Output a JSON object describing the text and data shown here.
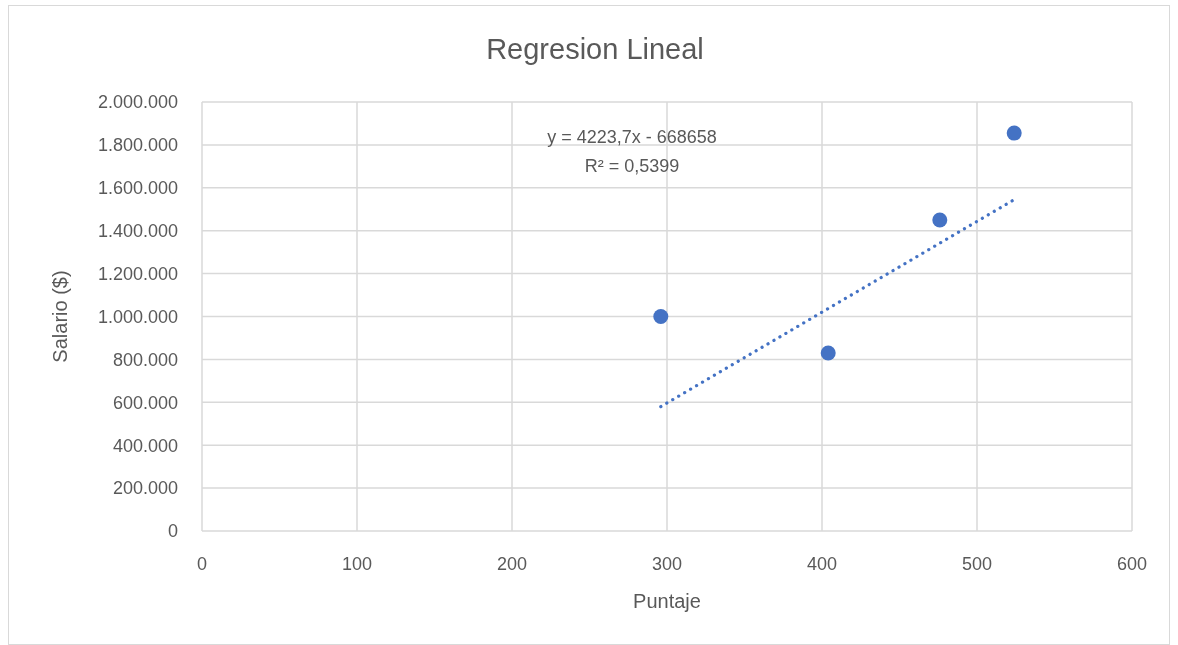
{
  "chart_data": {
    "type": "scatter",
    "title": "Regresion Lineal",
    "xlabel": "Puntaje",
    "ylabel": "Salario ($)",
    "annotations": [
      "y = 4223,7x - 668658",
      "R² = 0,5399"
    ],
    "xlim": [
      0,
      600
    ],
    "xticks": [
      0,
      100,
      200,
      300,
      400,
      500,
      600
    ],
    "ylim": [
      0,
      2000000
    ],
    "yticks": [
      0,
      {
        "value": 200000,
        "label": "200.000"
      },
      {
        "value": 400000,
        "label": "400.000"
      },
      {
        "value": 600000,
        "label": "600.000"
      },
      {
        "value": 800000,
        "label": "800.000"
      },
      {
        "value": 1000000,
        "label": "1.000.000"
      },
      {
        "value": 1200000,
        "label": "1.200.000"
      },
      {
        "value": 1400000,
        "label": "1.400.000"
      },
      {
        "value": 1600000,
        "label": "1.600.000"
      },
      {
        "value": 1800000,
        "label": "1.800.000"
      },
      {
        "value": 2000000,
        "label": "2.000.000"
      }
    ],
    "grid": true,
    "series": [
      {
        "color": "#4472c4",
        "marker": "circle",
        "x": [
          296,
          404,
          476,
          524
        ],
        "values": [
          1000000,
          830000,
          1450000,
          1855000
        ]
      },
      {
        "type": "line",
        "color": "#4472c4",
        "line_style": "dotted",
        "x": [
          296,
          524
        ],
        "values": [
          580000,
          1545000
        ]
      }
    ]
  }
}
